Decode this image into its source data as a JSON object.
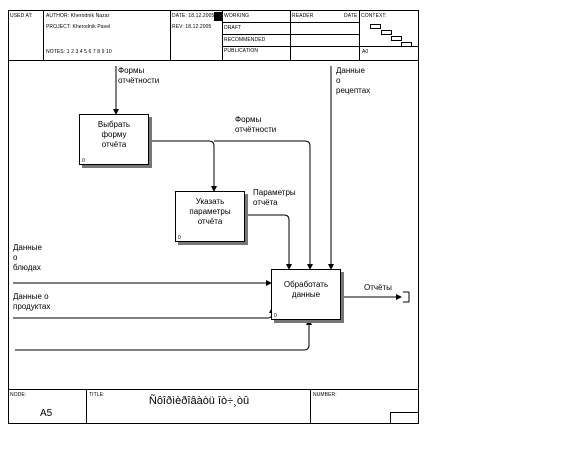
{
  "header": {
    "used_at": "USED AT:",
    "author": "AUTHOR: Kherodnik Nazar",
    "project": "PROJECT: Kherodnik Pavel",
    "notes": "NOTES: 1 2 3 4 5 6 7 8 9 10",
    "date": "DATE: 18.12.2005",
    "rev": "REV: 18.12.2005",
    "working": "WORKING",
    "draft": "DRAFT",
    "recommended": "RECOMMENDED",
    "publication": "PUBLICATION",
    "reader": "READER",
    "reader_date": "DATE",
    "context": "CONTEXT:",
    "context_code": "A0"
  },
  "boxes": [
    {
      "text": "Выбрать\nформу\nотчёта",
      "number": "0"
    },
    {
      "text": "Указать\nпараметры\nотчёта",
      "number": "0"
    },
    {
      "text": "Обработать\nданные",
      "number": "0"
    }
  ],
  "arrows": {
    "forms_top": "Формы\nотчётности",
    "forms_mid": "Формы\nотчётности",
    "recipes": "Данные\nо\nрецептах",
    "params": "Параметры\nотчёта",
    "dishes": "Данные\nо\nблюдах",
    "products": "Данные о\nпродуктах",
    "reports": "Отчёты"
  },
  "footer": {
    "node_label": "NODE:",
    "node_value": "A5",
    "title_label": "TITLE:",
    "title_value": "Ñôîðìèðîâàòü îò÷¸òû",
    "number_label": "NUMBER:"
  }
}
